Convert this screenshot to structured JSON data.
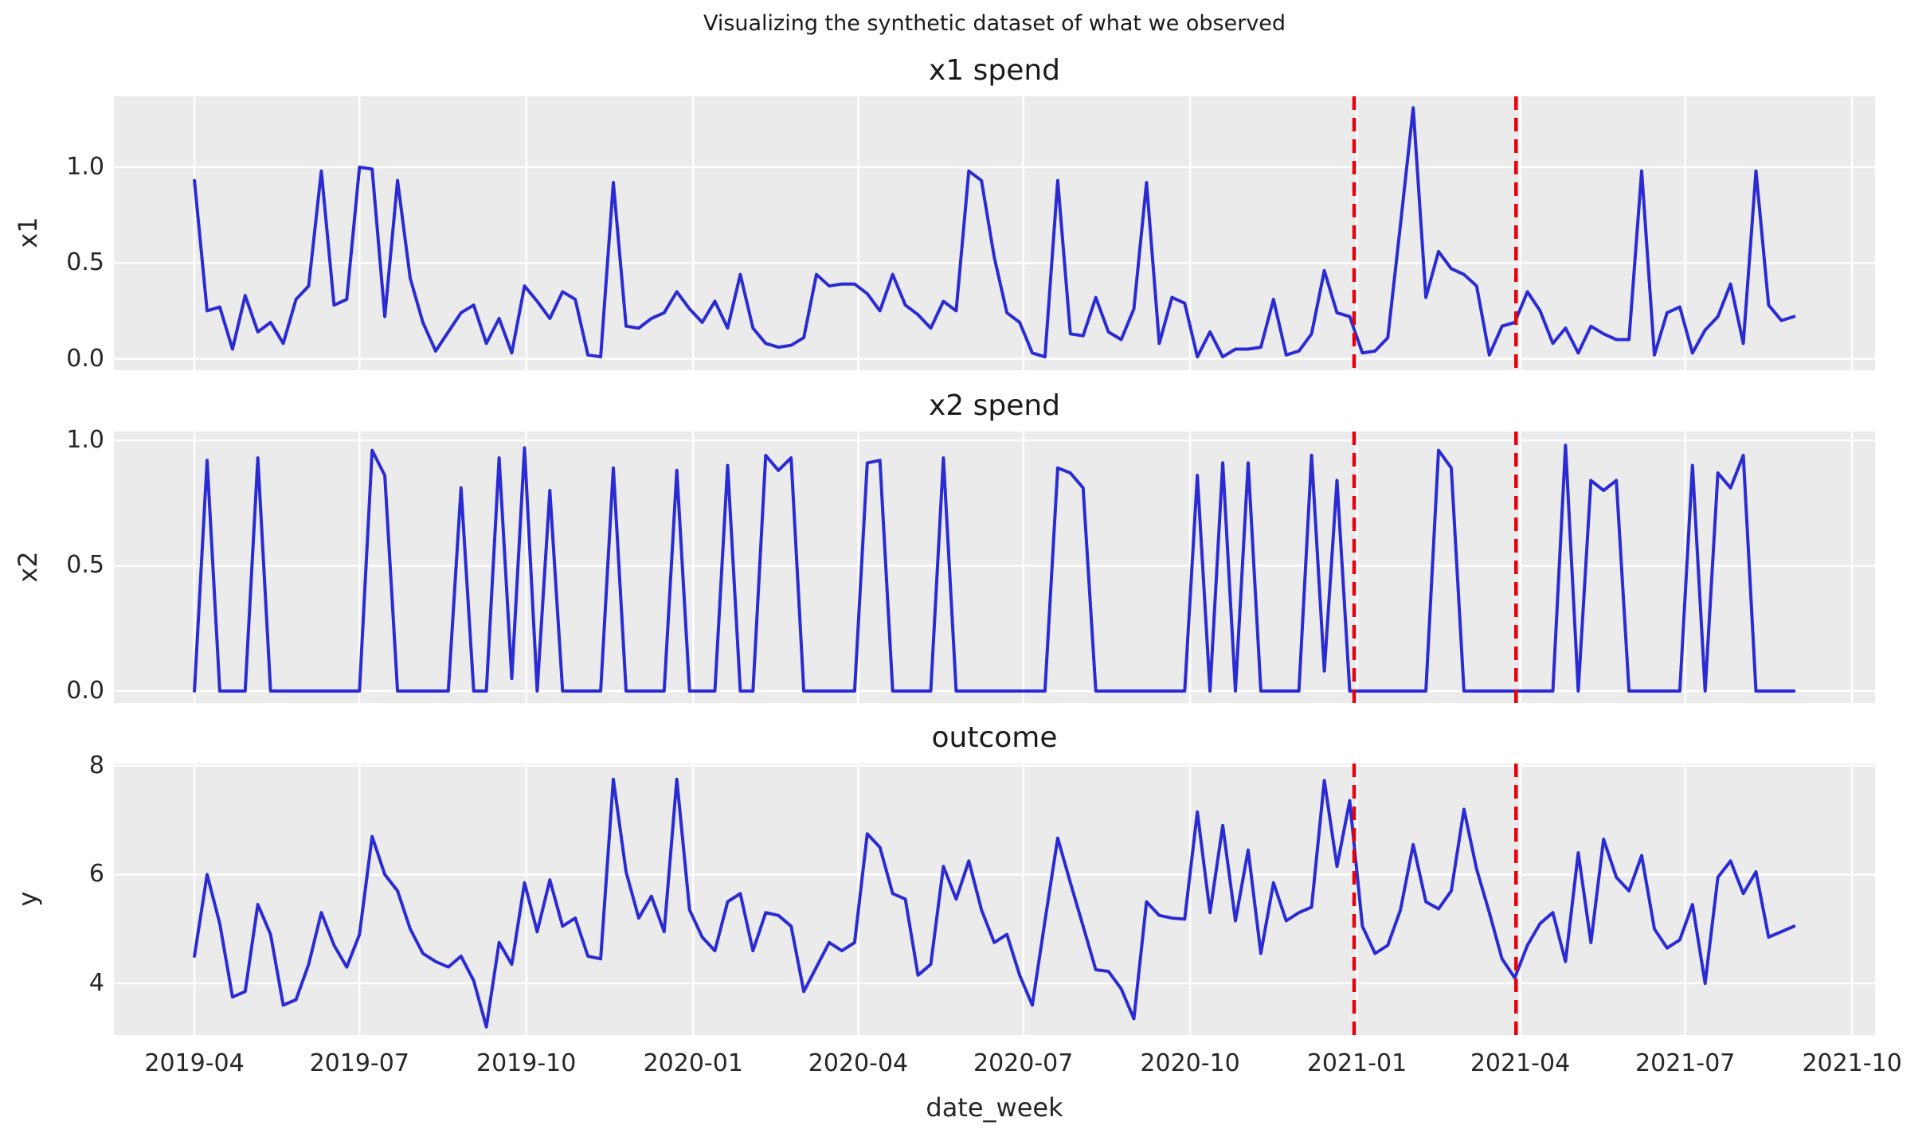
{
  "figure": {
    "suptitle": "Visualizing the synthetic dataset of what we observed",
    "xlabel": "date_week"
  },
  "colors": {
    "series_line": "#2b2bd4",
    "split_line": "#e8000b",
    "plot_background": "#ebebeb",
    "gridline": "#ffffff",
    "text": "#262626"
  },
  "x_axis": {
    "tick_labels": [
      "2019-04",
      "2019-07",
      "2019-10",
      "2020-01",
      "2020-04",
      "2020-07",
      "2020-10",
      "2021-01",
      "2021-04",
      "2021-07",
      "2021-10"
    ],
    "tick_week_positions": [
      0,
      13.0,
      26.14,
      39.29,
      52.29,
      65.29,
      78.43,
      91.57,
      104.43,
      117.43,
      130.57
    ],
    "range_weeks": [
      -6.34,
      132.38
    ]
  },
  "split_lines_week_positions": [
    91.35,
    104.1
  ],
  "chart_data": [
    {
      "type": "line",
      "title": "x1 spend",
      "ylabel": "x1",
      "x_start_date": "2019-04-01",
      "x_frequency": "weekly",
      "ylim": [
        -0.06,
        1.37
      ],
      "ytick_labels": [
        "0.0",
        "0.5",
        "1.0"
      ],
      "ytick_values": [
        0,
        0.5,
        1.0
      ],
      "grid": true,
      "legend": "none",
      "values": [
        0.93,
        0.25,
        0.27,
        0.05,
        0.33,
        0.14,
        0.19,
        0.08,
        0.31,
        0.38,
        0.98,
        0.28,
        0.31,
        1.0,
        0.99,
        0.22,
        0.93,
        0.42,
        0.19,
        0.04,
        0.14,
        0.24,
        0.28,
        0.08,
        0.21,
        0.03,
        0.38,
        0.3,
        0.21,
        0.35,
        0.31,
        0.02,
        0.01,
        0.92,
        0.17,
        0.16,
        0.21,
        0.24,
        0.35,
        0.26,
        0.19,
        0.3,
        0.16,
        0.44,
        0.16,
        0.08,
        0.06,
        0.07,
        0.11,
        0.44,
        0.38,
        0.39,
        0.39,
        0.34,
        0.25,
        0.44,
        0.28,
        0.23,
        0.16,
        0.3,
        0.25,
        0.98,
        0.93,
        0.53,
        0.24,
        0.19,
        0.03,
        0.01,
        0.93,
        0.13,
        0.12,
        0.32,
        0.14,
        0.1,
        0.26,
        0.92,
        0.08,
        0.32,
        0.29,
        0.01,
        0.14,
        0.01,
        0.05,
        0.05,
        0.06,
        0.31,
        0.02,
        0.04,
        0.13,
        0.46,
        0.24,
        0.22,
        0.03,
        0.04,
        0.11,
        0.7,
        1.31,
        0.32,
        0.56,
        0.47,
        0.44,
        0.38,
        0.02,
        0.17,
        0.19,
        0.35,
        0.25,
        0.08,
        0.16,
        0.03,
        0.17,
        0.13,
        0.1,
        0.1,
        0.98,
        0.02,
        0.24,
        0.27,
        0.03,
        0.15,
        0.22,
        0.39,
        0.08,
        0.98,
        0.28,
        0.2,
        0.22
      ]
    },
    {
      "type": "line",
      "title": "x2 spend",
      "ylabel": "x2",
      "x_start_date": "2019-04-01",
      "x_frequency": "weekly",
      "ylim": [
        -0.048,
        1.035
      ],
      "ytick_labels": [
        "0.0",
        "0.5",
        "1.0"
      ],
      "ytick_values": [
        0,
        0.5,
        1.0
      ],
      "grid": true,
      "legend": "none",
      "values": [
        0,
        0.92,
        0,
        0,
        0,
        0.93,
        0,
        0,
        0,
        0,
        0,
        0,
        0,
        0,
        0.96,
        0.86,
        0,
        0,
        0,
        0,
        0,
        0.81,
        0,
        0,
        0.93,
        0.05,
        0.97,
        0,
        0.8,
        0,
        0,
        0,
        0,
        0.89,
        0,
        0,
        0,
        0,
        0.88,
        0,
        0,
        0,
        0.9,
        0,
        0,
        0.94,
        0.88,
        0.93,
        0,
        0,
        0,
        0,
        0,
        0.91,
        0.92,
        0,
        0,
        0,
        0,
        0.93,
        0,
        0,
        0,
        0,
        0,
        0,
        0,
        0,
        0.89,
        0.87,
        0.81,
        0,
        0,
        0,
        0,
        0,
        0,
        0,
        0,
        0.86,
        0,
        0.91,
        0,
        0.91,
        0,
        0,
        0,
        0,
        0.94,
        0.08,
        0.84,
        0,
        0,
        0,
        0,
        0,
        0,
        0,
        0.96,
        0.89,
        0,
        0,
        0,
        0,
        0,
        0,
        0,
        0,
        0.98,
        0,
        0.84,
        0.8,
        0.84,
        0,
        0,
        0,
        0,
        0,
        0.9,
        0,
        0.87,
        0.81,
        0.94,
        0,
        0,
        0,
        0
      ]
    },
    {
      "type": "line",
      "title": "outcome",
      "ylabel": "y",
      "x_start_date": "2019-04-01",
      "x_frequency": "weekly",
      "ylim": [
        3.05,
        8.04
      ],
      "ytick_labels": [
        "4",
        "6",
        "8"
      ],
      "ytick_values": [
        4,
        6,
        8
      ],
      "grid": true,
      "legend": "none",
      "values": [
        4.5,
        6.0,
        5.1,
        3.75,
        3.85,
        5.45,
        4.9,
        3.6,
        3.7,
        4.35,
        5.3,
        4.7,
        4.3,
        4.9,
        6.7,
        6.0,
        5.7,
        5.0,
        4.55,
        4.4,
        4.3,
        4.5,
        4.05,
        3.2,
        4.75,
        4.35,
        5.85,
        4.95,
        5.9,
        5.05,
        5.2,
        4.5,
        4.45,
        7.75,
        6.05,
        5.2,
        5.6,
        4.95,
        7.75,
        5.35,
        4.85,
        4.6,
        5.5,
        5.65,
        4.6,
        5.3,
        5.25,
        5.05,
        3.85,
        4.3,
        4.75,
        4.6,
        4.75,
        6.75,
        6.5,
        5.65,
        5.55,
        4.15,
        4.35,
        6.15,
        5.55,
        6.25,
        5.35,
        4.75,
        4.9,
        4.15,
        3.6,
        5.15,
        6.67,
        5.85,
        5.05,
        4.25,
        4.22,
        3.9,
        3.35,
        5.5,
        5.25,
        5.2,
        5.18,
        7.15,
        5.3,
        6.9,
        5.15,
        6.45,
        4.55,
        5.85,
        5.15,
        5.3,
        5.4,
        7.73,
        6.15,
        7.36,
        5.05,
        4.55,
        4.7,
        5.35,
        6.55,
        5.5,
        5.37,
        5.7,
        7.2,
        6.1,
        5.3,
        4.45,
        4.1,
        4.7,
        5.1,
        5.3,
        4.4,
        6.4,
        4.75,
        6.65,
        5.95,
        5.7,
        6.35,
        5.0,
        4.65,
        4.8,
        5.45,
        4.0,
        5.95,
        6.25,
        5.65,
        6.05,
        4.85,
        4.95,
        5.05
      ]
    }
  ]
}
